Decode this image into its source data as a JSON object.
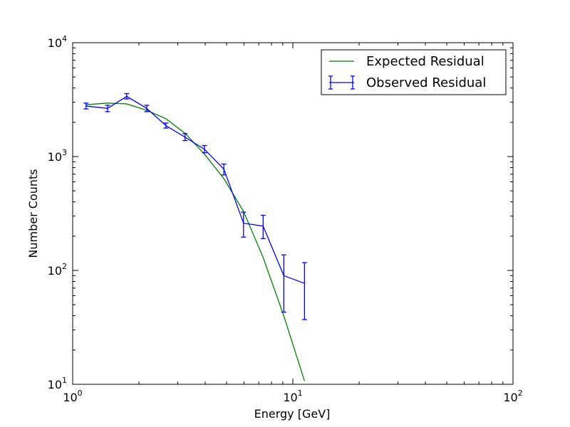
{
  "chart_data": {
    "type": "line",
    "xlabel": "Energy [GeV]",
    "ylabel": "Number Counts",
    "xscale": "log",
    "yscale": "log",
    "xlim": [
      1,
      100
    ],
    "ylim": [
      10,
      10000
    ],
    "x_ticks": [
      {
        "value": 1,
        "base": "10",
        "exp": "0"
      },
      {
        "value": 10,
        "base": "10",
        "exp": "1"
      },
      {
        "value": 100,
        "base": "10",
        "exp": "2"
      }
    ],
    "y_ticks": [
      {
        "value": 10,
        "base": "10",
        "exp": "1"
      },
      {
        "value": 100,
        "base": "10",
        "exp": "2"
      },
      {
        "value": 1000,
        "base": "10",
        "exp": "3"
      },
      {
        "value": 10000,
        "base": "10",
        "exp": "4"
      }
    ],
    "grid": false,
    "legend_position": "top-right",
    "series": [
      {
        "name": "Expected Residual",
        "style": "line",
        "color": "#008000",
        "x": [
          1.15,
          1.44,
          1.76,
          2.17,
          2.65,
          3.24,
          3.97,
          4.86,
          5.97,
          7.33,
          9.1,
          11.3
        ],
        "y": [
          2850,
          2950,
          2900,
          2550,
          2150,
          1600,
          1050,
          640,
          330,
          130,
          40,
          10.7
        ]
      },
      {
        "name": "Observed Residual",
        "style": "errorbar",
        "color": "#0000ff",
        "x": [
          1.15,
          1.44,
          1.76,
          2.17,
          2.65,
          3.24,
          3.97,
          4.86,
          5.97,
          7.33,
          9.1,
          11.3
        ],
        "y": [
          2780,
          2650,
          3380,
          2650,
          1870,
          1480,
          1160,
          775,
          260,
          245,
          90,
          77
        ],
        "yerr_low": [
          2620,
          2480,
          3200,
          2480,
          1780,
          1380,
          1080,
          690,
          196,
          190,
          43,
          37
        ],
        "yerr_high": [
          2950,
          2820,
          3570,
          2820,
          1970,
          1590,
          1250,
          860,
          325,
          305,
          137,
          117
        ]
      }
    ]
  }
}
